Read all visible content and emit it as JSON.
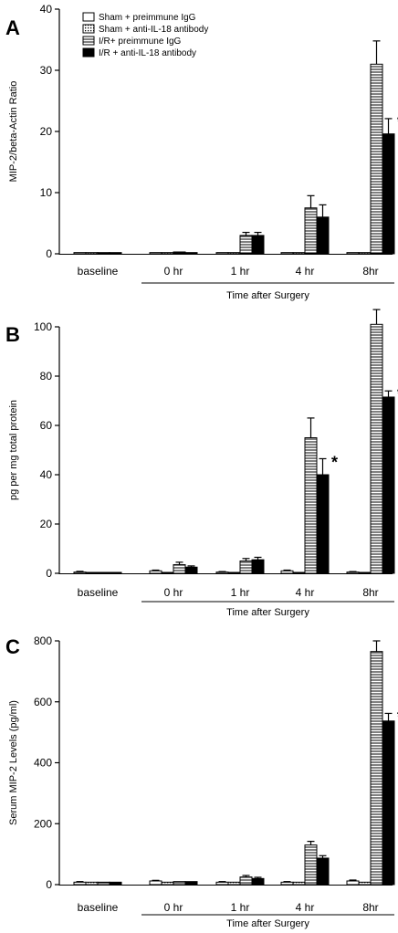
{
  "legend": {
    "entries": [
      {
        "label": "Sham + preimmune IgG",
        "pattern": "empty"
      },
      {
        "label": "Sham + anti-IL-18 antibody",
        "pattern": "dots"
      },
      {
        "label": "I/R+ preimmune IgG",
        "pattern": "hlines"
      },
      {
        "label": "I/R + anti-IL-18 antibody",
        "pattern": "solid"
      }
    ]
  },
  "chart_data": [
    {
      "type": "bar",
      "panel": "A",
      "ylabel": "MIP-2/beta-Actin Ratio",
      "xlabel": "Time after Surgery",
      "ylim": [
        0,
        40
      ],
      "yticks": [
        0,
        10,
        20,
        30,
        40
      ],
      "categories": [
        "baseline",
        "0 hr",
        "1 hr",
        "4 hr",
        "8hr"
      ],
      "series": [
        {
          "name": "Sham + preimmune IgG",
          "values": [
            0.2,
            0.2,
            0.2,
            0.2,
            0.2
          ],
          "errors": [
            0,
            0,
            0,
            0,
            0
          ]
        },
        {
          "name": "Sham + anti-IL-18 antibody",
          "values": [
            0.2,
            0.2,
            0.2,
            0.2,
            0.2
          ],
          "errors": [
            0,
            0,
            0,
            0,
            0
          ]
        },
        {
          "name": "I/R+ preimmune IgG",
          "values": [
            0.2,
            0.3,
            3.0,
            7.5,
            31.0
          ],
          "errors": [
            0,
            0,
            0.5,
            2.0,
            3.8
          ]
        },
        {
          "name": "I/R + anti-IL-18 antibody",
          "values": [
            0.2,
            0.2,
            3.0,
            6.0,
            19.6
          ],
          "errors": [
            0,
            0,
            0.5,
            2.0,
            2.5
          ]
        }
      ],
      "significance": [
        {
          "category": "8hr",
          "series": "I/R + anti-IL-18 antibody",
          "label": "*"
        }
      ]
    },
    {
      "type": "bar",
      "panel": "B",
      "ylabel": "pg per mg total protein",
      "xlabel": "Time after Surgery",
      "ylim": [
        0,
        100
      ],
      "yticks": [
        0,
        20,
        40,
        60,
        80,
        100
      ],
      "categories": [
        "baseline",
        "0 hr",
        "1 hr",
        "4 hr",
        "8hr"
      ],
      "series": [
        {
          "name": "Sham + preimmune IgG",
          "values": [
            0.5,
            1.0,
            0.5,
            1.0,
            0.5
          ],
          "errors": [
            0.3,
            0.3,
            0.2,
            0.3,
            0.2
          ]
        },
        {
          "name": "Sham + anti-IL-18 antibody",
          "values": [
            0.3,
            0.3,
            0.3,
            0.3,
            0.3
          ],
          "errors": [
            0,
            0,
            0,
            0,
            0
          ]
        },
        {
          "name": "I/R+ preimmune IgG",
          "values": [
            0.3,
            3.5,
            5.0,
            55.0,
            101.0
          ],
          "errors": [
            0,
            1.0,
            1.0,
            8.0,
            6.0
          ]
        },
        {
          "name": "I/R + anti-IL-18 antibody",
          "values": [
            0.3,
            2.5,
            5.5,
            40.0,
            71.5
          ],
          "errors": [
            0,
            0.5,
            1.0,
            6.5,
            2.5
          ]
        }
      ],
      "significance": [
        {
          "category": "4 hr",
          "series": "I/R + anti-IL-18 antibody",
          "label": "*"
        },
        {
          "category": "8hr",
          "series": "I/R + anti-IL-18 antibody",
          "label": "*"
        }
      ]
    },
    {
      "type": "bar",
      "panel": "C",
      "ylabel": "Serum MIP-2 Levels (pg/ml)",
      "xlabel": "Time after Surgery",
      "ylim": [
        0,
        800
      ],
      "yticks": [
        0,
        200,
        400,
        600,
        800
      ],
      "categories": [
        "baseline",
        "0 hr",
        "1 hr",
        "4 hr",
        "8hr"
      ],
      "series": [
        {
          "name": "Sham + preimmune IgG",
          "values": [
            8,
            12,
            8,
            8,
            12
          ],
          "errors": [
            2,
            2,
            2,
            2,
            3
          ]
        },
        {
          "name": "Sham + anti-IL-18 antibody",
          "values": [
            8,
            8,
            8,
            8,
            8
          ],
          "errors": [
            0,
            0,
            0,
            0,
            0
          ]
        },
        {
          "name": "I/R+ preimmune IgG",
          "values": [
            8,
            10,
            25,
            130,
            765
          ],
          "errors": [
            0,
            0,
            5,
            12,
            35
          ]
        },
        {
          "name": "I/R + anti-IL-18 antibody",
          "values": [
            8,
            10,
            20,
            87,
            537
          ],
          "errors": [
            0,
            0,
            4,
            8,
            25
          ]
        }
      ],
      "significance": [
        {
          "category": "8hr",
          "series": "I/R + anti-IL-18 antibody",
          "label": "*"
        }
      ]
    }
  ]
}
